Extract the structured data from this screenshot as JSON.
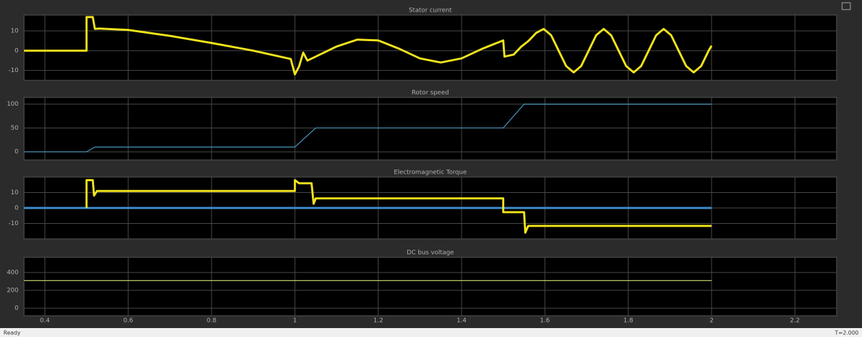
{
  "chart_data": [
    {
      "type": "line",
      "title": "Stator current",
      "xlim": [
        0.35,
        2.3
      ],
      "xticks": [
        0.4,
        0.6,
        0.8,
        1,
        1.2,
        1.4,
        1.6,
        1.8,
        2,
        2.2
      ],
      "ylim": [
        -15,
        18
      ],
      "yticks": [
        10,
        0,
        -10
      ],
      "grid": true,
      "series": [
        {
          "color": "#f2e41c",
          "x": [
            0.35,
            0.5,
            0.5,
            0.515,
            0.52,
            0.53,
            0.6,
            0.7,
            0.8,
            0.9,
            0.99,
            1.0,
            1.01,
            1.02,
            1.03,
            1.05,
            1.1,
            1.15,
            1.2,
            1.25,
            1.3,
            1.35,
            1.4,
            1.45,
            1.5,
            1.503,
            1.525,
            1.543,
            1.561,
            1.579,
            1.597,
            1.615,
            1.633,
            1.651,
            1.669,
            1.687,
            1.705,
            1.723,
            1.741,
            1.759,
            1.777,
            1.795,
            1.813,
            1.831,
            1.849,
            1.867,
            1.885,
            1.903,
            1.921,
            1.939,
            1.957,
            1.975,
            1.993,
            2.0
          ],
          "values": [
            0,
            0,
            17,
            17,
            11,
            11.2,
            10.5,
            7.5,
            3.9,
            0,
            -4.2,
            -12,
            -8,
            -1,
            -5,
            -3.0,
            2.1,
            5.6,
            5.2,
            1.0,
            -3.9,
            -6,
            -3.9,
            1.0,
            5.2,
            -3,
            -2,
            2,
            5,
            9,
            11,
            7.8,
            0,
            -7.8,
            -11,
            -7.8,
            0,
            7.8,
            11,
            7.8,
            0,
            -7.8,
            -11,
            -7.8,
            0,
            7.8,
            11,
            7.8,
            0,
            -7.8,
            -11,
            -7.8,
            0,
            2.5
          ]
        }
      ]
    },
    {
      "type": "line",
      "title": "Rotor speed",
      "xlim": [
        0.35,
        2.3
      ],
      "xticks": [
        0.4,
        0.6,
        0.8,
        1,
        1.2,
        1.4,
        1.6,
        1.8,
        2,
        2.2
      ],
      "ylim": [
        -17,
        114
      ],
      "yticks": [
        100,
        50,
        0
      ],
      "grid": true,
      "series": [
        {
          "color": "#4a9cc0",
          "x": [
            0.35,
            0.5,
            0.52,
            1.0,
            1.05,
            1.5,
            1.55,
            2.0
          ],
          "values": [
            0,
            0,
            10,
            10,
            50,
            50,
            100,
            100
          ]
        }
      ]
    },
    {
      "type": "line",
      "title": "Electromagnetic Torque",
      "xlim": [
        0.35,
        2.3
      ],
      "xticks": [
        0.4,
        0.6,
        0.8,
        1,
        1.2,
        1.4,
        1.6,
        1.8,
        2,
        2.2
      ],
      "ylim": [
        -20,
        20
      ],
      "yticks": [
        10,
        0,
        -10
      ],
      "grid": true,
      "series": [
        {
          "color": "#3f8fd0",
          "x": [
            0.35,
            2.0
          ],
          "values": [
            0,
            0
          ]
        },
        {
          "color": "#f2e41c",
          "x": [
            0.5,
            0.5,
            0.515,
            0.518,
            0.525,
            1.0,
            1.0,
            1.01,
            1.04,
            1.045,
            1.05,
            1.5,
            1.5,
            1.55,
            1.553,
            1.56,
            2.0
          ],
          "values": [
            0,
            18,
            18,
            8,
            11,
            11,
            18,
            16,
            16,
            2.7,
            6.2,
            6.2,
            -2.7,
            -2.7,
            -16,
            -11.6,
            -11.6
          ]
        }
      ]
    },
    {
      "type": "line",
      "title": "DC bus voltage",
      "xlim": [
        0.35,
        2.3
      ],
      "xticks": [
        0.4,
        0.6,
        0.8,
        1,
        1.2,
        1.4,
        1.6,
        1.8,
        2,
        2.2
      ],
      "ylim": [
        -85,
        570
      ],
      "yticks": [
        400,
        200,
        0
      ],
      "grid": true,
      "series": [
        {
          "color": "#c9d46a",
          "x": [
            0.35,
            2.0
          ],
          "values": [
            310,
            310
          ]
        }
      ]
    }
  ],
  "status": {
    "left": "Ready",
    "right": "T=2.000"
  }
}
